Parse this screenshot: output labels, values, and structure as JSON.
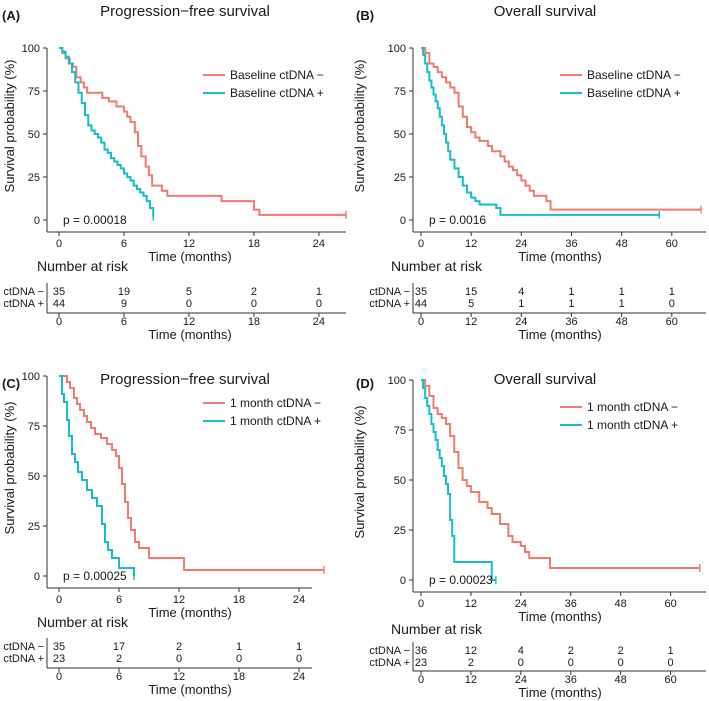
{
  "colors": {
    "neg": "#F07B6E",
    "pos": "#17BDC9",
    "axis": "#333333",
    "text": "#1a1a1a"
  },
  "axis_labels": {
    "x": "Time (months)",
    "y": "Survival probability (%)"
  },
  "risk_title": "Number at risk",
  "y_ticks": [
    "0",
    "25",
    "50",
    "75",
    "100"
  ],
  "panels": [
    {
      "letter": "(A)",
      "title": "Progression−free survival",
      "legend": [
        "Baseline ctDNA −",
        "Baseline ctDNA +"
      ],
      "p_text": "p = 0.00018",
      "xmax": 26.5,
      "x_ticks": [
        "0",
        "6",
        "12",
        "18",
        "24"
      ],
      "risk_rows": [
        {
          "label": "ctDNA −",
          "values": [
            "35",
            "19",
            "5",
            "2",
            "1"
          ]
        },
        {
          "label": "ctDNA +",
          "values": [
            "44",
            "9",
            "0",
            "0",
            "0"
          ]
        }
      ]
    },
    {
      "letter": "(B)",
      "title": "Overall survival",
      "legend": [
        "Baseline ctDNA −",
        "Baseline ctDNA +"
      ],
      "p_text": "p = 0.0016",
      "xmax": 68,
      "x_ticks": [
        "0",
        "12",
        "24",
        "36",
        "48",
        "60"
      ],
      "risk_rows": [
        {
          "label": "ctDNA −",
          "values": [
            "35",
            "15",
            "4",
            "1",
            "1",
            "1"
          ]
        },
        {
          "label": "ctDNA +",
          "values": [
            "44",
            "5",
            "1",
            "1",
            "1",
            "0"
          ]
        }
      ]
    },
    {
      "letter": "(C)",
      "title": "Progression−free survival",
      "legend": [
        "1 month ctDNA −",
        "1 month ctDNA +"
      ],
      "p_text": "p = 0.00025",
      "xmax": 26.5,
      "x_ticks": [
        "0",
        "6",
        "12",
        "18",
        "24"
      ],
      "risk_rows": [
        {
          "label": "ctDNA −",
          "values": [
            "35",
            "17",
            "2",
            "1",
            "1"
          ]
        },
        {
          "label": "ctDNA +",
          "values": [
            "23",
            "2",
            "0",
            "0",
            "0"
          ]
        }
      ]
    },
    {
      "letter": "(D)",
      "title": "Overall survival",
      "legend": [
        "1 month ctDNA −",
        "1 month ctDNA +"
      ],
      "p_text": "p = 0.00023",
      "xmax": 68,
      "x_ticks": [
        "0",
        "12",
        "24",
        "36",
        "48",
        "60"
      ],
      "risk_rows": [
        {
          "label": "ctDNA −",
          "values": [
            "36",
            "12",
            "4",
            "2",
            "2",
            "1"
          ]
        },
        {
          "label": "ctDNA +",
          "values": [
            "23",
            "2",
            "0",
            "0",
            "0",
            "0"
          ]
        }
      ]
    }
  ],
  "chart_data": [
    {
      "type": "line",
      "title": "Progression−free survival",
      "xlabel": "Time (months)",
      "ylabel": "Survival probability (%)",
      "xlim": [
        0,
        26.5
      ],
      "ylim": [
        0,
        100
      ],
      "series": [
        {
          "name": "Baseline ctDNA −",
          "x": [
            0,
            0.3,
            0.6,
            1.0,
            1.3,
            1.6,
            2.0,
            2.3,
            2.6,
            3.3,
            4.0,
            4.6,
            5.3,
            6.0,
            6.3,
            6.6,
            7.0,
            7.3,
            7.6,
            8.0,
            8.3,
            8.6,
            9.5,
            10.0,
            11.5,
            15.0,
            18.0,
            18.5,
            26.5
          ],
          "y": [
            100,
            97,
            94,
            91,
            89,
            83,
            80,
            77,
            74,
            74,
            71,
            69,
            66,
            63,
            60,
            57,
            51,
            43,
            37,
            31,
            26,
            20,
            17,
            14,
            14,
            11,
            6,
            3,
            3
          ]
        },
        {
          "name": "Baseline ctDNA +",
          "x": [
            0,
            0.3,
            0.6,
            0.9,
            1.2,
            1.5,
            1.8,
            2.1,
            2.4,
            2.7,
            3.0,
            3.3,
            3.6,
            3.9,
            4.2,
            4.5,
            4.8,
            5.1,
            5.4,
            5.7,
            6.0,
            6.3,
            6.6,
            6.9,
            7.2,
            7.5,
            7.8,
            8.1,
            8.4,
            8.7
          ],
          "y": [
            100,
            98,
            95,
            91,
            86,
            80,
            74,
            68,
            61,
            55,
            52,
            50,
            48,
            45,
            41,
            39,
            36,
            34,
            32,
            30,
            27,
            25,
            23,
            20,
            18,
            16,
            14,
            11,
            7,
            2
          ]
        }
      ]
    },
    {
      "type": "line",
      "title": "Overall survival",
      "xlabel": "Time (months)",
      "ylabel": "Survival probability (%)",
      "xlim": [
        0,
        68
      ],
      "ylim": [
        0,
        100
      ],
      "series": [
        {
          "name": "Baseline ctDNA −",
          "x": [
            0,
            1,
            2,
            3,
            4,
            5,
            6,
            7,
            8,
            9,
            10,
            11,
            12,
            13,
            14,
            16,
            17,
            19,
            20,
            21,
            22,
            23,
            24,
            25,
            26,
            27,
            30,
            31,
            67
          ],
          "y": [
            100,
            97,
            91,
            89,
            86,
            83,
            80,
            77,
            74,
            66,
            60,
            54,
            51,
            48,
            46,
            43,
            40,
            37,
            34,
            31,
            29,
            26,
            23,
            20,
            17,
            14,
            11,
            6,
            6
          ]
        },
        {
          "name": "Baseline ctDNA +",
          "x": [
            0,
            0.5,
            1,
            1.5,
            2,
            2.5,
            3,
            3.5,
            4,
            4.5,
            5,
            5.5,
            6,
            6.5,
            7,
            8,
            9,
            10,
            11,
            12,
            13,
            14,
            16,
            18,
            19,
            57
          ],
          "y": [
            100,
            96,
            91,
            86,
            81,
            77,
            73,
            69,
            65,
            60,
            55,
            50,
            45,
            40,
            35,
            30,
            25,
            20,
            16,
            13,
            11,
            9,
            9,
            7,
            3,
            3
          ]
        }
      ]
    },
    {
      "type": "line",
      "title": "Progression−free survival",
      "xlabel": "Time (months)",
      "ylabel": "Survival probability (%)",
      "xlim": [
        0,
        26.5
      ],
      "ylim": [
        0,
        100
      ],
      "series": [
        {
          "name": "1 month ctDNA −",
          "x": [
            0,
            0.8,
            1.1,
            1.5,
            1.8,
            2.1,
            2.5,
            2.8,
            3.2,
            3.6,
            4.2,
            4.8,
            5.3,
            5.7,
            6.0,
            6.3,
            6.6,
            6.9,
            7.2,
            7.6,
            8.0,
            9.0,
            10.0,
            11.0,
            12.5,
            26.5
          ],
          "y": [
            100,
            97,
            94,
            89,
            86,
            83,
            80,
            77,
            74,
            71,
            69,
            66,
            63,
            60,
            54,
            46,
            37,
            29,
            23,
            17,
            14,
            9,
            9,
            9,
            3,
            3
          ]
        },
        {
          "name": "1 month ctDNA +",
          "x": [
            0,
            0.3,
            0.5,
            0.8,
            1.0,
            1.3,
            1.6,
            1.9,
            2.3,
            2.8,
            3.3,
            3.8,
            4.3,
            4.6,
            4.9,
            5.3,
            6.0,
            7.5
          ],
          "y": [
            100,
            91,
            87,
            78,
            70,
            61,
            57,
            52,
            48,
            43,
            39,
            35,
            26,
            17,
            13,
            9,
            4,
            0
          ]
        }
      ]
    },
    {
      "type": "line",
      "title": "Overall survival",
      "xlabel": "Time (months)",
      "ylabel": "Survival probability (%)",
      "xlim": [
        0,
        68
      ],
      "ylim": [
        0,
        100
      ],
      "series": [
        {
          "name": "1 month ctDNA −",
          "x": [
            0,
            1,
            2,
            3,
            4,
            5,
            6,
            7,
            8,
            9,
            10,
            11,
            12,
            14,
            16,
            17,
            19,
            21,
            22,
            24,
            25,
            26,
            31,
            55,
            67
          ],
          "y": [
            100,
            97,
            92,
            86,
            83,
            81,
            78,
            72,
            64,
            56,
            50,
            47,
            44,
            39,
            36,
            33,
            28,
            22,
            19,
            17,
            14,
            11,
            6,
            6,
            6
          ]
        },
        {
          "name": "1 month ctDNA +",
          "x": [
            0,
            0.5,
            1,
            1.5,
            2,
            2.5,
            3,
            3.5,
            4,
            4.5,
            5,
            5.5,
            6,
            6.5,
            7,
            7.5,
            8,
            15,
            17,
            18
          ],
          "y": [
            100,
            96,
            91,
            87,
            83,
            78,
            74,
            70,
            65,
            61,
            57,
            52,
            48,
            43,
            30,
            22,
            9,
            9,
            0,
            0
          ]
        }
      ]
    }
  ]
}
